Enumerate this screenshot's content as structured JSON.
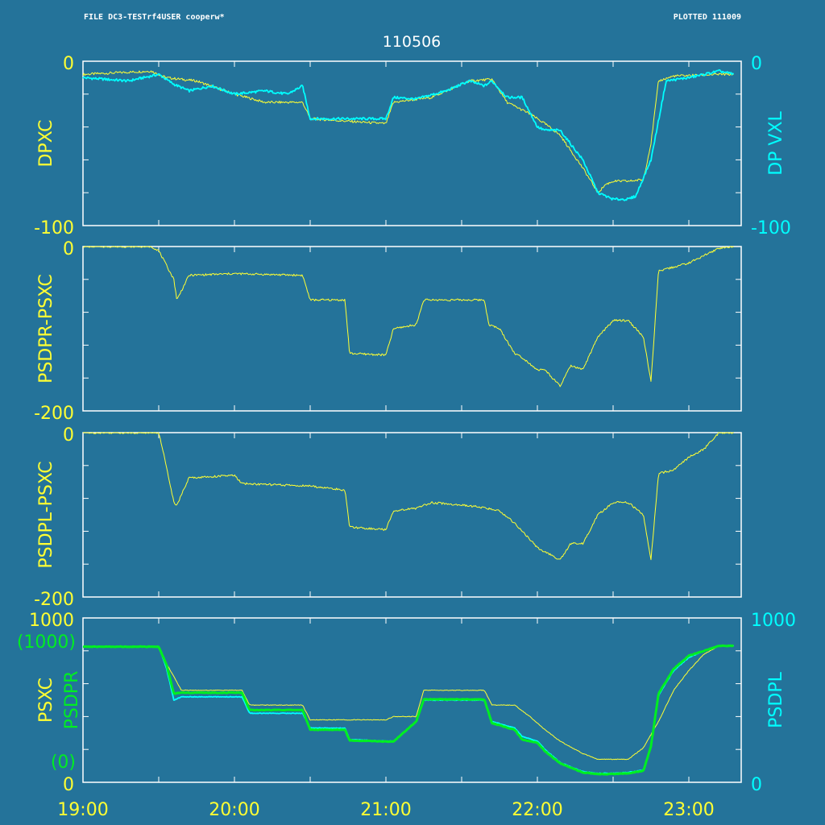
{
  "header": {
    "file_label": "FILE DC3-TESTrf4USER cooperw*",
    "plotted_label": "PLOTTED 111009",
    "date_title": "110506"
  },
  "colors": {
    "background": "#24739A",
    "frame": "#FFFFFF",
    "yellow": "#FFFF33",
    "cyan": "#00FFFF",
    "green": "#00EE22"
  },
  "chart_data": [
    {
      "type": "line",
      "panel": "dp",
      "ylabel": "DPXC",
      "ylabel_right": "DP VXL",
      "ylim": [
        -100,
        0
      ],
      "y2lim": [
        -100,
        0
      ],
      "yticks": {
        "top": "0",
        "bottom": "-100"
      },
      "y2ticks": {
        "top": "0",
        "bottom": "-100"
      },
      "x_unit": "hours",
      "series": [
        {
          "color": "yellow",
          "x": [
            19.0,
            19.45,
            19.55,
            19.75,
            20.0,
            20.2,
            20.45,
            20.5,
            21.0,
            21.05,
            21.3,
            21.55,
            21.7,
            21.8,
            21.95,
            22.05,
            22.15,
            22.3,
            22.4,
            22.45,
            22.5,
            22.6,
            22.7,
            22.75,
            22.8,
            22.9,
            23.2,
            23.3
          ],
          "y": [
            -8,
            -6,
            -10,
            -12,
            -20,
            -25,
            -25,
            -35,
            -38,
            -25,
            -22,
            -12,
            -11,
            -25,
            -32,
            -38,
            -45,
            -65,
            -80,
            -75,
            -73,
            -73,
            -72,
            -50,
            -12,
            -9,
            -8,
            -8
          ]
        },
        {
          "color": "cyan",
          "x": [
            19.0,
            19.3,
            19.5,
            19.6,
            19.7,
            19.85,
            20.0,
            20.2,
            20.35,
            20.45,
            20.5,
            20.8,
            21.0,
            21.05,
            21.2,
            21.4,
            21.55,
            21.65,
            21.7,
            21.8,
            21.9,
            22.0,
            22.05,
            22.15,
            22.3,
            22.4,
            22.5,
            22.6,
            22.65,
            22.75,
            22.85,
            23.0,
            23.2,
            23.3
          ],
          "y": [
            -10,
            -12,
            -8,
            -14,
            -18,
            -15,
            -20,
            -18,
            -20,
            -15,
            -35,
            -35,
            -35,
            -22,
            -23,
            -18,
            -12,
            -15,
            -12,
            -22,
            -22,
            -40,
            -42,
            -42,
            -60,
            -80,
            -84,
            -84,
            -82,
            -60,
            -12,
            -10,
            -6,
            -8
          ]
        }
      ]
    },
    {
      "type": "line",
      "panel": "psdpr",
      "ylabel": "PSDPR-PSXC",
      "ylim": [
        -200,
        0
      ],
      "yticks": {
        "top": "0",
        "bottom": "-200"
      },
      "x_unit": "hours",
      "series": [
        {
          "color": "yellow",
          "x": [
            19.0,
            19.45,
            19.5,
            19.6,
            19.62,
            19.7,
            20.0,
            20.45,
            20.5,
            20.73,
            20.76,
            21.0,
            21.05,
            21.2,
            21.25,
            21.65,
            21.68,
            21.75,
            21.85,
            21.9,
            22.0,
            22.05,
            22.15,
            22.22,
            22.3,
            22.4,
            22.5,
            22.6,
            22.7,
            22.75,
            22.8,
            22.9,
            23.0,
            23.2,
            23.3
          ],
          "y": [
            0,
            0,
            -5,
            -40,
            -65,
            -35,
            -33,
            -35,
            -65,
            -65,
            -130,
            -132,
            -100,
            -95,
            -65,
            -65,
            -95,
            -100,
            -130,
            -135,
            -150,
            -150,
            -170,
            -145,
            -150,
            -110,
            -90,
            -90,
            -110,
            -165,
            -30,
            -25,
            -20,
            -2,
            0
          ]
        }
      ]
    },
    {
      "type": "line",
      "panel": "psdpl",
      "ylabel": "PSDPL-PSXC",
      "ylim": [
        -200,
        0
      ],
      "yticks": {
        "top": "0",
        "bottom": "-200"
      },
      "x_unit": "hours",
      "series": [
        {
          "color": "yellow",
          "x": [
            19.0,
            19.5,
            19.55,
            19.6,
            19.62,
            19.7,
            20.0,
            20.05,
            20.5,
            20.73,
            20.76,
            21.0,
            21.05,
            21.2,
            21.3,
            21.6,
            21.75,
            21.85,
            21.9,
            22.0,
            22.05,
            22.15,
            22.22,
            22.3,
            22.4,
            22.5,
            22.6,
            22.7,
            22.75,
            22.8,
            22.9,
            23.0,
            23.1,
            23.2,
            23.3
          ],
          "y": [
            0,
            0,
            -40,
            -85,
            -88,
            -55,
            -52,
            -62,
            -65,
            -70,
            -115,
            -118,
            -95,
            -92,
            -85,
            -90,
            -95,
            -110,
            -120,
            -140,
            -145,
            -155,
            -135,
            -135,
            -100,
            -85,
            -85,
            -100,
            -155,
            -50,
            -45,
            -30,
            -20,
            0,
            0
          ]
        }
      ]
    },
    {
      "type": "line",
      "panel": "pressure",
      "ylabel": "PSXC",
      "ylabel_mid": "PSDPR",
      "ylabel_right": "PSDPL",
      "ylim": [
        0,
        1000
      ],
      "y2lim": [
        0,
        1000
      ],
      "yticks": {
        "top": "1000",
        "bottom": "0"
      },
      "mid_ticks": {
        "top": "(1000)",
        "bottom": "(0)"
      },
      "y2ticks": {
        "top": "1000",
        "bottom": "0"
      },
      "x_unit": "hours",
      "xticks": [
        "19:00",
        "20:00",
        "21:00",
        "22:00",
        "23:00"
      ],
      "series": [
        {
          "color": "yellow",
          "x": [
            19.0,
            19.5,
            19.55,
            19.65,
            20.05,
            20.1,
            20.45,
            20.5,
            21.0,
            21.05,
            21.2,
            21.25,
            21.65,
            21.7,
            21.85,
            21.95,
            22.05,
            22.15,
            22.3,
            22.4,
            22.5,
            22.6,
            22.7,
            22.8,
            22.9,
            23.0,
            23.1,
            23.2,
            23.3
          ],
          "y": [
            825,
            825,
            725,
            560,
            560,
            470,
            470,
            380,
            380,
            400,
            400,
            560,
            560,
            470,
            470,
            400,
            320,
            250,
            175,
            140,
            140,
            140,
            210,
            370,
            560,
            680,
            780,
            830,
            830
          ]
        },
        {
          "color": "cyan",
          "x": [
            19.0,
            19.5,
            19.55,
            19.6,
            19.65,
            20.05,
            20.1,
            20.45,
            20.5,
            20.73,
            20.76,
            21.0,
            21.05,
            21.2,
            21.25,
            21.65,
            21.7,
            21.85,
            21.9,
            22.0,
            22.05,
            22.15,
            22.3,
            22.4,
            22.5,
            22.6,
            22.7,
            22.75,
            22.8,
            22.9,
            23.0,
            23.1,
            23.2,
            23.3
          ],
          "y": [
            825,
            825,
            700,
            500,
            520,
            520,
            420,
            420,
            330,
            330,
            260,
            250,
            250,
            370,
            500,
            500,
            370,
            330,
            280,
            250,
            200,
            120,
            65,
            55,
            55,
            60,
            75,
            220,
            530,
            680,
            760,
            800,
            830,
            830
          ]
        },
        {
          "color": "green",
          "x": [
            19.0,
            19.5,
            19.55,
            19.6,
            19.65,
            20.05,
            20.1,
            20.45,
            20.5,
            20.73,
            20.76,
            21.0,
            21.05,
            21.2,
            21.25,
            21.65,
            21.7,
            21.85,
            21.9,
            22.0,
            22.05,
            22.15,
            22.3,
            22.4,
            22.5,
            22.6,
            22.7,
            22.75,
            22.8,
            22.9,
            23.0,
            23.1,
            23.2,
            23.3
          ],
          "y": [
            825,
            825,
            720,
            540,
            545,
            545,
            440,
            440,
            320,
            320,
            255,
            248,
            248,
            370,
            505,
            505,
            360,
            320,
            260,
            240,
            190,
            115,
            60,
            50,
            50,
            55,
            70,
            220,
            540,
            690,
            770,
            800,
            830,
            830
          ]
        }
      ]
    }
  ]
}
